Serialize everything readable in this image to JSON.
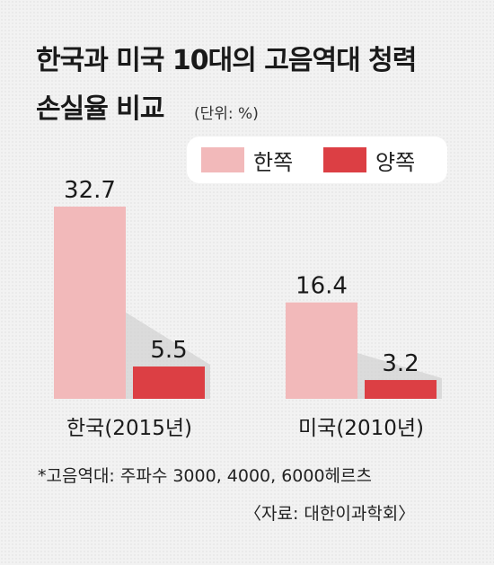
{
  "title_line1": "한국과 미국 10대의 고음역대 청력",
  "title_line2": "손실율 비교",
  "unit": "(단위: %)",
  "colors": {
    "one_ear": "#f2b9ba",
    "both_ears": "#dc3f44",
    "shadow": "#c9c9c9"
  },
  "chart_data": {
    "type": "bar",
    "categories": [
      "한국(2015년)",
      "미국(2010년)"
    ],
    "series": [
      {
        "name": "한쪽",
        "values": [
          32.7,
          16.4
        ]
      },
      {
        "name": "양쪽",
        "values": [
          5.5,
          3.2
        ]
      }
    ],
    "data_labels": [
      [
        "32.7",
        "16.4"
      ],
      [
        "5.5",
        "3.2"
      ]
    ],
    "ylim": [
      0,
      32.7
    ],
    "grid": false,
    "legend_position": "top-right"
  },
  "footnote": "*고음역대: 주파수 3000, 4000, 6000헤르츠",
  "source": "〈자료: 대한이과학회〉"
}
